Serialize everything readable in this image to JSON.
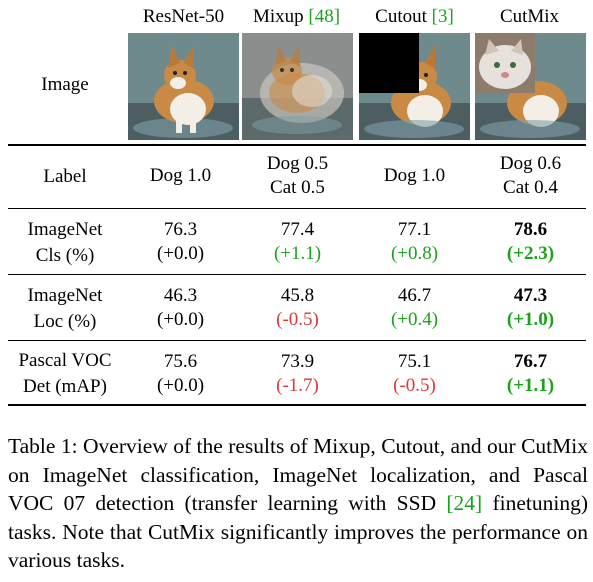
{
  "columns": [
    {
      "name": "ResNet-50",
      "cite": ""
    },
    {
      "name": "Mixup ",
      "cite": "[48]"
    },
    {
      "name": "Cutout ",
      "cite": "[3]"
    },
    {
      "name": "CutMix",
      "cite": ""
    }
  ],
  "image_row_label": "Image",
  "label_row": {
    "label": "Label",
    "values": [
      {
        "line1": "Dog 1.0",
        "line2": ""
      },
      {
        "line1": "Dog 0.5",
        "line2": "Cat 0.5"
      },
      {
        "line1": "Dog 1.0",
        "line2": ""
      },
      {
        "line1": "Dog 0.6",
        "line2": "Cat 0.4"
      }
    ]
  },
  "metric_rows": [
    {
      "label1": "ImageNet",
      "label2": "Cls (%)",
      "values": [
        "76.3",
        "77.4",
        "77.1",
        "78.6"
      ],
      "deltas": [
        "(+0.0)",
        "(+1.1)",
        "(+0.8)",
        "(+2.3)"
      ]
    },
    {
      "label1": "ImageNet",
      "label2": "Loc (%)",
      "values": [
        "46.3",
        "45.8",
        "46.7",
        "47.3"
      ],
      "deltas": [
        "(+0.0)",
        "(-0.5)",
        "(+0.4)",
        "(+1.0)"
      ]
    },
    {
      "label1": "Pascal VOC",
      "label2": "Det (mAP)",
      "values": [
        "75.6",
        "73.9",
        "75.1",
        "76.7"
      ],
      "deltas": [
        "(+0.0)",
        "(-1.7)",
        "(-0.5)",
        "(+1.1)"
      ]
    }
  ],
  "caption": {
    "part1": "Table 1: Overview of the results of Mixup, Cutout, and our CutMix on ImageNet classification, ImageNet localization, and Pascal VOC 07 detection (transfer learning with SSD ",
    "cite": "[24]",
    "part2": " finetuning) tasks. Note that CutMix significantly improves the performance on various tasks."
  },
  "colors": {
    "positive": "#1aa31a",
    "negative": "#e0363a",
    "neutral": "#000000"
  }
}
